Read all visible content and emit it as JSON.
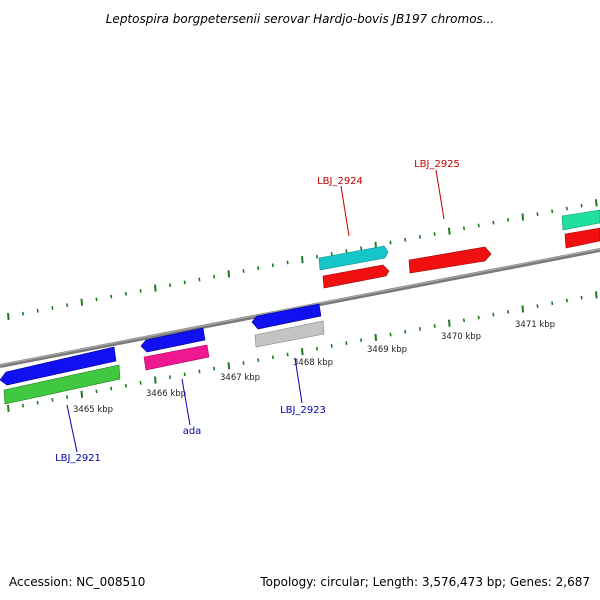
{
  "title": "Leptospira borgpetersenii serovar Hardjo-bovis JB197 chromos...",
  "footer": {
    "accession": "Accession: NC_008510",
    "summary": "Topology: circular; Length: 3,576,473 bp; Genes: 2,687"
  },
  "colors": {
    "backbone": "#888888",
    "tick": "#1f7a1f",
    "forward_label": "#c00000",
    "reverse_label": "#0000b0"
  },
  "scale_labels": [
    "3465 kbp",
    "3466 kbp",
    "3467 kbp",
    "3468 kbp",
    "3469 kbp",
    "3470 kbp",
    "3471 kbp"
  ],
  "gene_labels": {
    "forward": [
      "LBJ_2924",
      "LBJ_2925"
    ],
    "reverse": [
      "LBJ_2921",
      "ada",
      "LBJ_2923"
    ]
  }
}
